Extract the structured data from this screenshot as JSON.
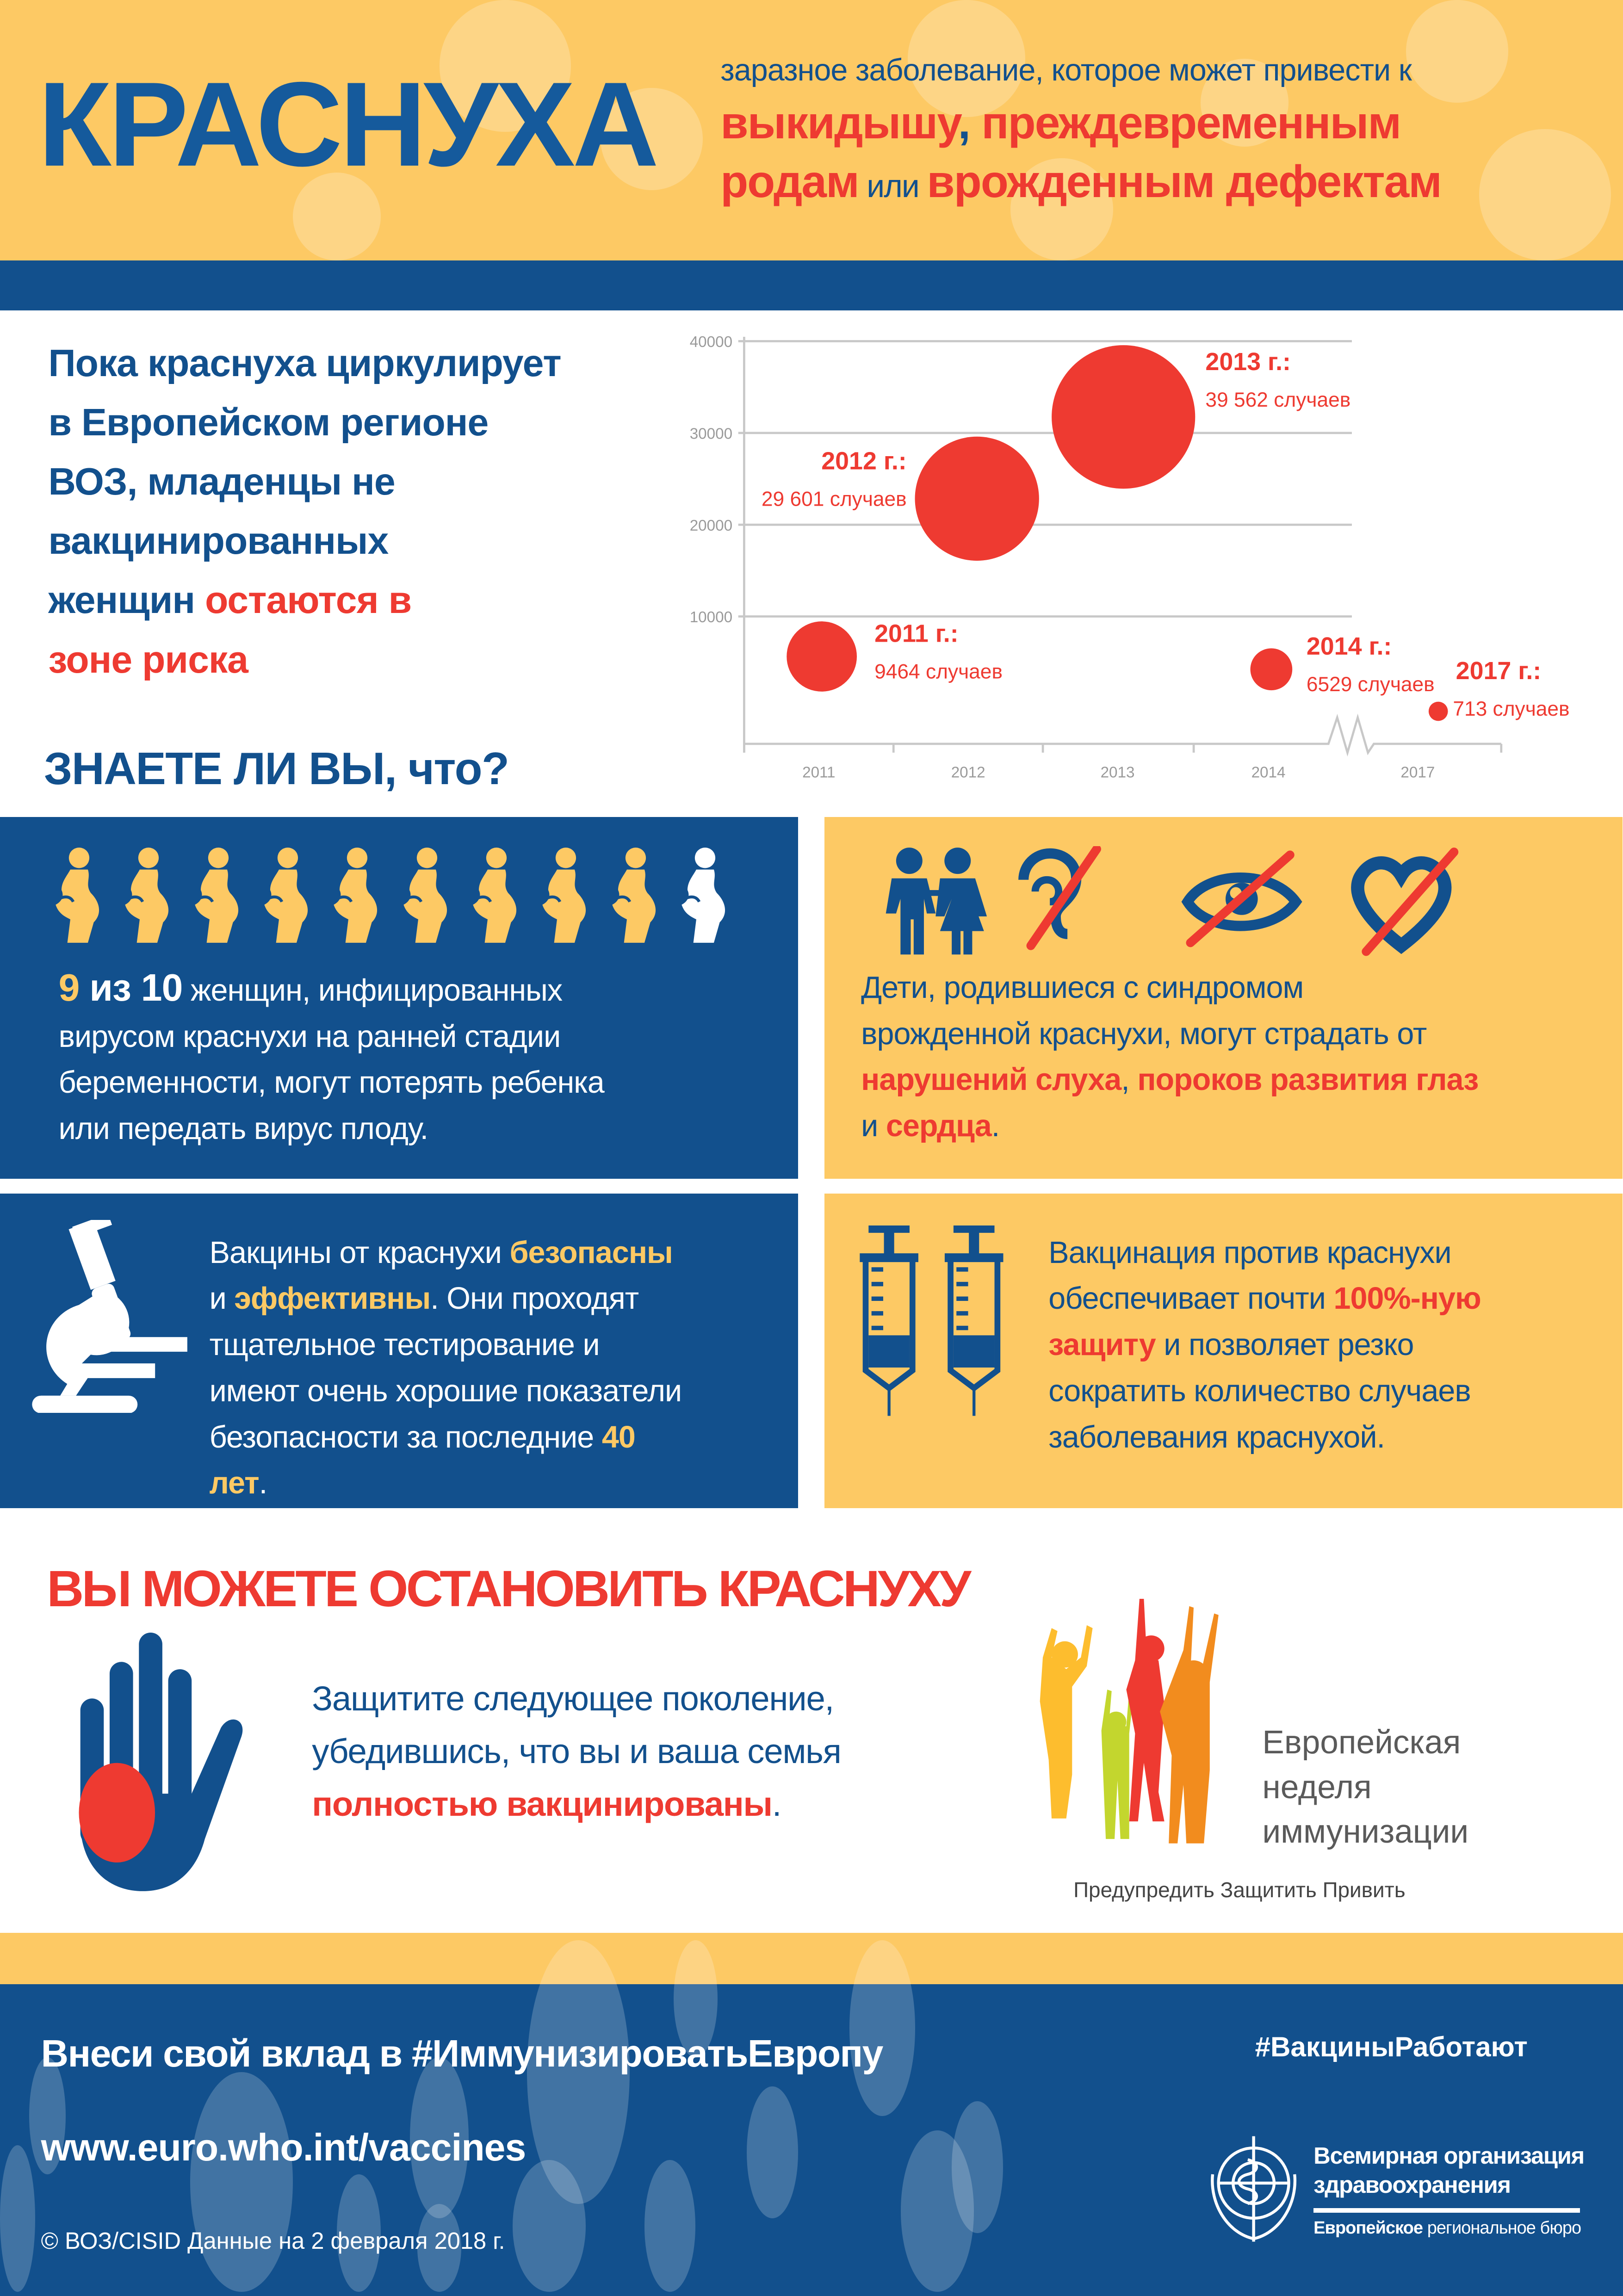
{
  "colors": {
    "blue": "#12508d",
    "yellow": "#fdc964",
    "red": "#ee3a31",
    "gray_text": "#5a5a5a"
  },
  "header": {
    "title": "КРАСНУХА",
    "line1": "заразное заболевание, которое может привести к",
    "line2_a": "выкидышу",
    "line2_b": ", ",
    "line2_c": "преждевременным",
    "line3_a": "родам",
    "line3_b": " или ",
    "line3_c": "врожденным дефектам"
  },
  "intro": {
    "line1": "Пока краснуха циркулирует",
    "line2": "в Европейском регионе",
    "line3": "ВОЗ, младенцы не",
    "line4": "вакцинированных",
    "line5_a": "женщин ",
    "line5_b": "остаются в",
    "line6": "зоне риска"
  },
  "know_title": "ЗНАЕТЕ ЛИ ВЫ, что?",
  "chart_data": {
    "type": "bubble",
    "categories": [
      "2011",
      "2012",
      "2013",
      "2014",
      "2017"
    ],
    "values": [
      9464,
      29601,
      39562,
      6529,
      713
    ],
    "year_labels": [
      "2011 г.:",
      "2012 г.:",
      "2013 г.:",
      "2014 г.:",
      "2017 г.:"
    ],
    "value_labels": [
      "9464 случаев",
      "29 601 случаев",
      "39 562 случаев",
      "6529 случаев",
      "713 случаев"
    ],
    "y_ticks": [
      "10000",
      "20000",
      "30000",
      "40000"
    ],
    "ylim": [
      0,
      40000
    ],
    "axis_break": "between 2014 and 2017",
    "grid": true,
    "bubble_color": "#ee3a31"
  },
  "panel_women": {
    "icon": "pregnant-woman-icon",
    "infected_count": 9,
    "total_count": 10,
    "num_a": "9",
    "num_b": " из 10",
    "line1": "  женщин, инфицированных",
    "line2": "вирусом краснухи на ранней стадии",
    "line3": "беременности, могут потерять ребенка",
    "line4": "или передать вирус плоду."
  },
  "panel_children": {
    "icons": [
      "children-icon",
      "ear-crossed-icon",
      "eye-crossed-icon",
      "heart-crossed-icon"
    ],
    "line1": "Дети, родившиеся с синдромом",
    "line2": "врожденной краснухи, могут страдать от",
    "line3_a": "нарушений слуха",
    "line3_b": ", ",
    "line3_c": "пороков развития глаз",
    "line4_a": "и ",
    "line4_b": "сердца",
    "line4_c": "."
  },
  "panel_safety": {
    "icon": "microscope-icon",
    "line1_a": "Вакцины от краснухи ",
    "line1_b": "безопасны",
    "line2_a": "и ",
    "line2_b": "эффективны",
    "line2_c": ". Они проходят",
    "line3": "тщательное тестирование и",
    "line4": "имеют очень хорошие показатели",
    "line5_a": "безопасности за последние ",
    "line5_b": "40",
    "line6_a": "лет",
    "line6_b": "."
  },
  "panel_vaccination": {
    "icon": "syringe-icon",
    "line1": "Вакцинация против краснухи",
    "line2_a": "обеспечивает почти ",
    "line2_b": "100%-ную",
    "line3_a": "защиту",
    "line3_b": " и позволяет резко",
    "line4": "сократить количество случаев",
    "line5": "заболевания краснухой."
  },
  "stop": {
    "title": "ВЫ МОЖЕТЕ ОСТАНОВИТЬ КРАСНУХУ",
    "line1": "Защитите следующее поколение,",
    "line2": "убедившись, что вы и ваша семья",
    "line3_a": "полностью вакцинированы",
    "line3_b": "."
  },
  "ewi": {
    "line1": "Европейская",
    "line2": "неделя",
    "line3": "иммунизации",
    "slogan": "Предупредить Защитить Привить"
  },
  "footer": {
    "cta": "Внеси свой вклад в #ИммунизироватьЕвропу",
    "hashtag": "#ВакциныРаботают",
    "url": "www.euro.who.int/vaccines",
    "copyright": "© ВОЗ/CISID Данные на 2 февраля 2018 г.",
    "who_line1": "Всемирная организация",
    "who_line2": "здравоохранения",
    "who_region_a": "Европейское",
    "who_region_b": " региональное бюро"
  }
}
